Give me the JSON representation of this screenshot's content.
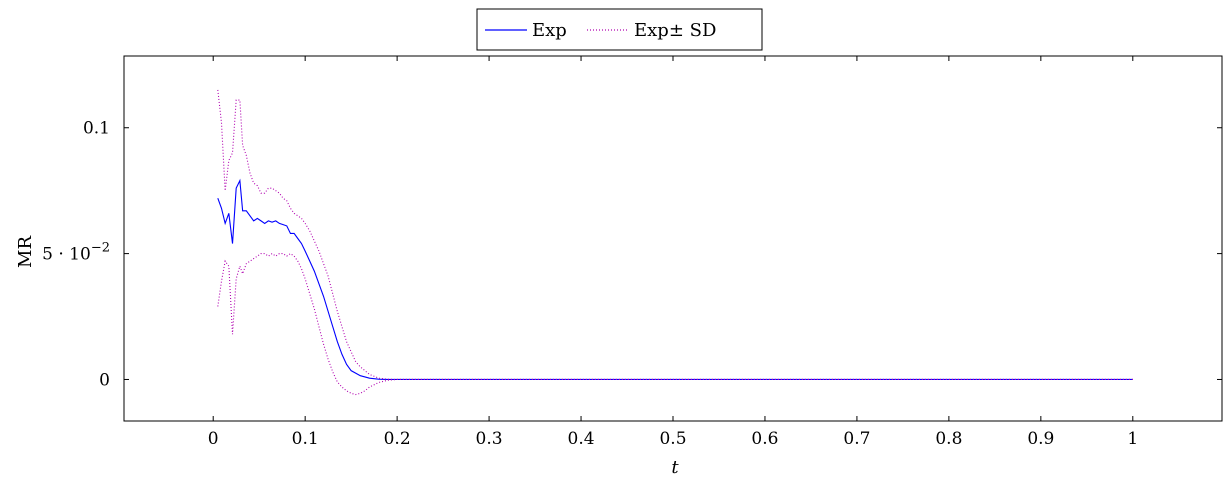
{
  "chart_data": {
    "type": "line",
    "xlabel": "t",
    "ylabel": "MR",
    "xlim": [
      -0.097,
      1.097
    ],
    "ylim": [
      -0.0165,
      0.1285
    ],
    "x_ticks": [
      {
        "value": 0,
        "label": "0"
      },
      {
        "value": 0.1,
        "label": "0.1"
      },
      {
        "value": 0.2,
        "label": "0.2"
      },
      {
        "value": 0.3,
        "label": "0.3"
      },
      {
        "value": 0.4,
        "label": "0.4"
      },
      {
        "value": 0.5,
        "label": "0.5"
      },
      {
        "value": 0.6,
        "label": "0.6"
      },
      {
        "value": 0.7,
        "label": "0.7"
      },
      {
        "value": 0.8,
        "label": "0.8"
      },
      {
        "value": 0.9,
        "label": "0.9"
      },
      {
        "value": 1,
        "label": "1"
      }
    ],
    "y_ticks": [
      {
        "value": 0,
        "label": "0",
        "kind": "plain"
      },
      {
        "value": 0.05,
        "label": "5 · 10",
        "exp": "−2",
        "kind": "sci"
      },
      {
        "value": 0.1,
        "label": "0.1",
        "kind": "plain"
      }
    ],
    "grid": false,
    "legend_position": "top-center",
    "series": [
      {
        "name": "Exp",
        "color": "#0000ff",
        "style": "solid",
        "points": [
          [
            0.005,
            0.072
          ],
          [
            0.009,
            0.068
          ],
          [
            0.013,
            0.062
          ],
          [
            0.017,
            0.066
          ],
          [
            0.021,
            0.054
          ],
          [
            0.025,
            0.076
          ],
          [
            0.029,
            0.079
          ],
          [
            0.032,
            0.067
          ],
          [
            0.036,
            0.067
          ],
          [
            0.04,
            0.065
          ],
          [
            0.044,
            0.063
          ],
          [
            0.048,
            0.064
          ],
          [
            0.052,
            0.063
          ],
          [
            0.056,
            0.062
          ],
          [
            0.06,
            0.063
          ],
          [
            0.064,
            0.0625
          ],
          [
            0.068,
            0.063
          ],
          [
            0.072,
            0.062
          ],
          [
            0.076,
            0.0615
          ],
          [
            0.08,
            0.061
          ],
          [
            0.084,
            0.058
          ],
          [
            0.088,
            0.058
          ],
          [
            0.092,
            0.056
          ],
          [
            0.096,
            0.054
          ],
          [
            0.1,
            0.051
          ],
          [
            0.105,
            0.047
          ],
          [
            0.11,
            0.043
          ],
          [
            0.115,
            0.038
          ],
          [
            0.12,
            0.033
          ],
          [
            0.125,
            0.027
          ],
          [
            0.13,
            0.021
          ],
          [
            0.135,
            0.015
          ],
          [
            0.14,
            0.01
          ],
          [
            0.145,
            0.006
          ],
          [
            0.15,
            0.0035
          ],
          [
            0.16,
            0.0015
          ],
          [
            0.17,
            0.0005
          ],
          [
            0.18,
            0.0001
          ],
          [
            0.19,
            0
          ],
          [
            0.2,
            0
          ],
          [
            0.3,
            0
          ],
          [
            0.4,
            0
          ],
          [
            0.5,
            0
          ],
          [
            0.6,
            0
          ],
          [
            0.7,
            0
          ],
          [
            0.8,
            0
          ],
          [
            0.9,
            0
          ],
          [
            1.0,
            0
          ]
        ]
      },
      {
        "name": "Exp± SD",
        "color": "#b000b0",
        "style": "dotted",
        "band": true,
        "upper": [
          [
            0.005,
            0.115
          ],
          [
            0.009,
            0.102
          ],
          [
            0.013,
            0.075
          ],
          [
            0.017,
            0.087
          ],
          [
            0.021,
            0.09
          ],
          [
            0.025,
            0.111
          ],
          [
            0.029,
            0.111
          ],
          [
            0.032,
            0.093
          ],
          [
            0.036,
            0.089
          ],
          [
            0.04,
            0.082
          ],
          [
            0.044,
            0.078
          ],
          [
            0.048,
            0.077
          ],
          [
            0.052,
            0.074
          ],
          [
            0.056,
            0.074
          ],
          [
            0.06,
            0.076
          ],
          [
            0.064,
            0.076
          ],
          [
            0.068,
            0.075
          ],
          [
            0.072,
            0.074
          ],
          [
            0.076,
            0.072
          ],
          [
            0.08,
            0.071
          ],
          [
            0.084,
            0.068
          ],
          [
            0.088,
            0.066
          ],
          [
            0.092,
            0.065
          ],
          [
            0.096,
            0.064
          ],
          [
            0.1,
            0.062
          ],
          [
            0.105,
            0.059
          ],
          [
            0.11,
            0.055
          ],
          [
            0.115,
            0.051
          ],
          [
            0.12,
            0.046
          ],
          [
            0.125,
            0.041
          ],
          [
            0.13,
            0.034
          ],
          [
            0.135,
            0.027
          ],
          [
            0.14,
            0.021
          ],
          [
            0.145,
            0.015
          ],
          [
            0.15,
            0.011
          ],
          [
            0.155,
            0.007
          ],
          [
            0.16,
            0.005
          ],
          [
            0.17,
            0.002
          ],
          [
            0.18,
            0.0005
          ],
          [
            0.19,
            0.0001
          ],
          [
            0.2,
            0
          ],
          [
            0.3,
            0
          ],
          [
            0.4,
            0
          ],
          [
            0.5,
            0
          ],
          [
            0.6,
            0
          ],
          [
            0.7,
            0
          ],
          [
            0.8,
            0
          ],
          [
            0.9,
            0
          ],
          [
            1.0,
            0
          ]
        ],
        "lower": [
          [
            0.005,
            0.029
          ],
          [
            0.009,
            0.039
          ],
          [
            0.013,
            0.047
          ],
          [
            0.017,
            0.045
          ],
          [
            0.021,
            0.018
          ],
          [
            0.025,
            0.04
          ],
          [
            0.029,
            0.045
          ],
          [
            0.032,
            0.042
          ],
          [
            0.036,
            0.046
          ],
          [
            0.04,
            0.047
          ],
          [
            0.044,
            0.048
          ],
          [
            0.048,
            0.049
          ],
          [
            0.052,
            0.05
          ],
          [
            0.056,
            0.05
          ],
          [
            0.06,
            0.049
          ],
          [
            0.064,
            0.05
          ],
          [
            0.068,
            0.049
          ],
          [
            0.072,
            0.05
          ],
          [
            0.076,
            0.05
          ],
          [
            0.08,
            0.049
          ],
          [
            0.084,
            0.05
          ],
          [
            0.088,
            0.049
          ],
          [
            0.092,
            0.047
          ],
          [
            0.096,
            0.044
          ],
          [
            0.1,
            0.04
          ],
          [
            0.105,
            0.034
          ],
          [
            0.11,
            0.028
          ],
          [
            0.115,
            0.021
          ],
          [
            0.12,
            0.014
          ],
          [
            0.125,
            0.008
          ],
          [
            0.13,
            0.003
          ],
          [
            0.135,
            -0.001
          ],
          [
            0.14,
            -0.003
          ],
          [
            0.145,
            -0.0045
          ],
          [
            0.15,
            -0.0055
          ],
          [
            0.155,
            -0.006
          ],
          [
            0.16,
            -0.0055
          ],
          [
            0.165,
            -0.0045
          ],
          [
            0.17,
            -0.003
          ],
          [
            0.18,
            -0.0012
          ],
          [
            0.19,
            -0.0003
          ],
          [
            0.2,
            0
          ],
          [
            0.3,
            0
          ],
          [
            0.4,
            0
          ],
          [
            0.5,
            0
          ],
          [
            0.6,
            0
          ],
          [
            0.7,
            0
          ],
          [
            0.8,
            0
          ],
          [
            0.9,
            0
          ],
          [
            1.0,
            0
          ]
        ]
      }
    ]
  }
}
